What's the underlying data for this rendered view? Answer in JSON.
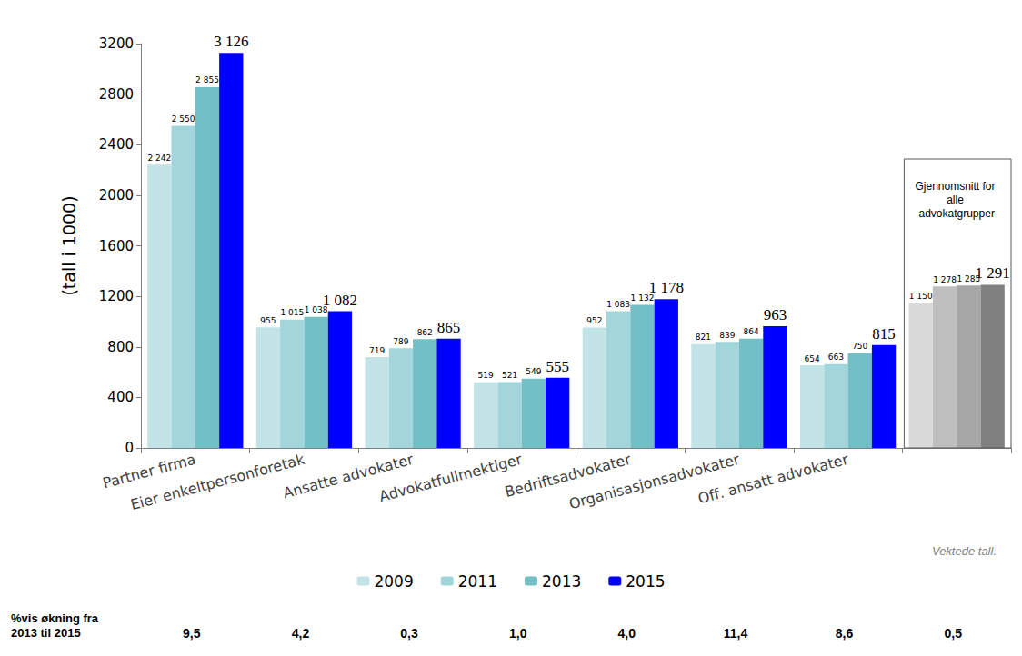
{
  "chart_data": {
    "type": "bar",
    "y_label": "(tall i 1000)",
    "categories": [
      "Partner firma",
      "Eier enkeltpersonforetak",
      "Ansatte advokater",
      "Advokatfullmektiger",
      "Bedriftsadvokater",
      "Organisasjonsadvokater",
      "Off. ansatt advokater",
      null
    ],
    "series": [
      {
        "name": "2009",
        "color": "#c2e4e7",
        "colors": [
          "#c2e4e7",
          "#c2e4e7",
          "#c2e4e7",
          "#c2e4e7",
          "#c2e4e7",
          "#c2e4e7",
          "#c2e4e7",
          "#d9d9d9"
        ],
        "values": [
          2242,
          955,
          719,
          519,
          952,
          821,
          654,
          1150
        ],
        "value_labels": [
          "2 242",
          "955",
          "719",
          "519",
          "952",
          "821",
          "654",
          "1 150"
        ]
      },
      {
        "name": "2011",
        "color": "#a3d6da",
        "colors": [
          "#a3d6da",
          "#a3d6da",
          "#a3d6da",
          "#a3d6da",
          "#a3d6da",
          "#a3d6da",
          "#a3d6da",
          "#bfbfbf"
        ],
        "values": [
          2550,
          1015,
          789,
          521,
          1083,
          839,
          663,
          1278
        ],
        "value_labels": [
          "2 550",
          "1 015",
          "789",
          "521",
          "1 083",
          "839",
          "663",
          "1 278"
        ]
      },
      {
        "name": "2013",
        "color": "#72c0c5",
        "colors": [
          "#72c0c5",
          "#72c0c5",
          "#72c0c5",
          "#72c0c5",
          "#72c0c5",
          "#72c0c5",
          "#72c0c5",
          "#a6a6a6"
        ],
        "values": [
          2855,
          1038,
          862,
          549,
          1132,
          864,
          750,
          1285
        ],
        "value_labels": [
          "2 855",
          "1 038",
          "862",
          "549",
          "1 132",
          "864",
          "750",
          "1 285"
        ]
      },
      {
        "name": "2015",
        "color": "#0000ff",
        "colors": [
          "#0000ff",
          "#0000ff",
          "#0000ff",
          "#0000ff",
          "#0000ff",
          "#0000ff",
          "#0000ff",
          "#808080"
        ],
        "values": [
          3126,
          1082,
          865,
          555,
          1178,
          963,
          815,
          1291
        ],
        "value_labels": [
          "3 126",
          "1 082",
          "865",
          "555",
          "1 178",
          "963",
          "815",
          "1 291"
        ]
      }
    ],
    "ylim": [
      0,
      3200
    ],
    "yticks": [
      0,
      400,
      800,
      1200,
      1600,
      2000,
      2400,
      2800,
      3200
    ],
    "grid": false,
    "legend": "bottom",
    "data_labels": true,
    "box_label": "Gjennomsnitt for alle advokatgrupper",
    "note": "Vektede tall.",
    "increase_row": {
      "label": "%vis økning fra 2013 til 2015",
      "values": [
        9.5,
        4.2,
        0.3,
        1.0,
        4.0,
        11.4,
        8.6,
        0.5
      ],
      "value_labels": [
        "9,5",
        "4,2",
        "0,3",
        "1,0",
        "4,0",
        "11,4",
        "8,6",
        "0,5"
      ]
    }
  }
}
